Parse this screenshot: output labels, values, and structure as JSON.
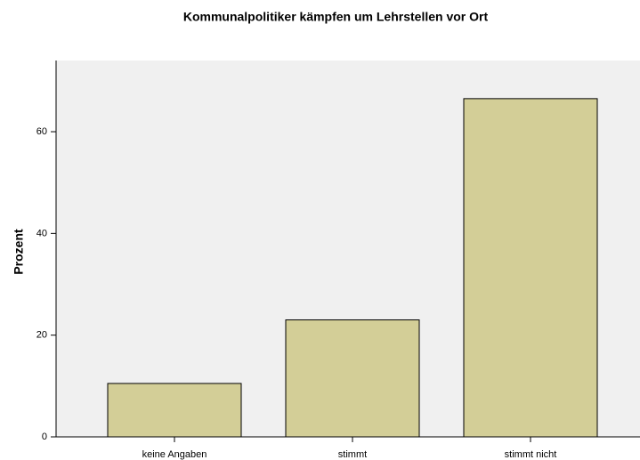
{
  "chart_data": {
    "type": "bar",
    "title": "Kommunalpolitiker kämpfen um Lehrstellen vor Ort",
    "ylabel": "Prozent",
    "categories": [
      "keine Angaben",
      "stimmt",
      "stimmt nicht"
    ],
    "values": [
      10.5,
      23.0,
      66.5
    ],
    "color": "#d3ce97",
    "ylim": [
      0,
      74
    ],
    "yticks": [
      0,
      20,
      40,
      60
    ],
    "grid": false
  }
}
